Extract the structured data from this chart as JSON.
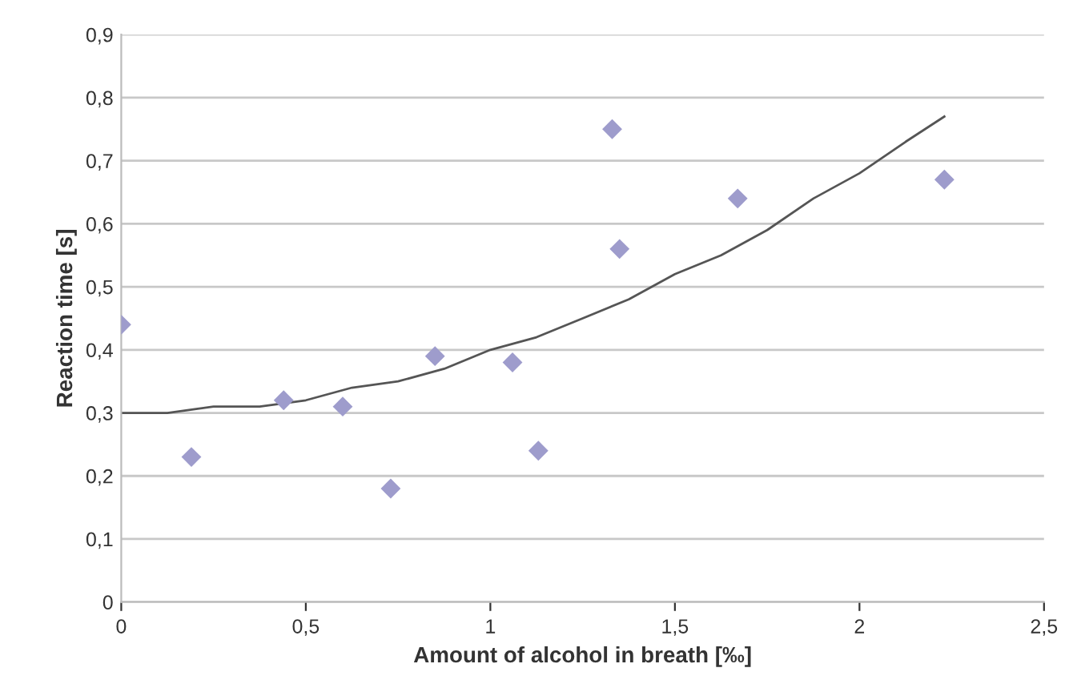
{
  "chart_data": {
    "type": "scatter",
    "xlabel": "Amount of alcohol in breath [‰]",
    "ylabel": "Reaction time [s]",
    "series": [
      {
        "color": "#9e9ccc",
        "marker": "diamond",
        "x": [
          0,
          0.19,
          0.44,
          0.6,
          0.73,
          0.85,
          1.06,
          1.13,
          1.33,
          1.35,
          1.67,
          2.23
        ],
        "values": [
          0.44,
          0.23,
          0.32,
          0.31,
          0.18,
          0.39,
          0.38,
          0.24,
          0.75,
          0.56,
          0.64,
          0.67
        ]
      },
      {
        "type": "line",
        "color": "#555555",
        "marker": "none",
        "line_style": "solid",
        "x": [
          0,
          0.125,
          0.25,
          0.375,
          0.5,
          0.625,
          0.75,
          0.875,
          1,
          1.125,
          1.25,
          1.375,
          1.5,
          1.625,
          1.75,
          1.875,
          2,
          2.125,
          2.23
        ],
        "values": [
          0.3,
          0.3,
          0.31,
          0.31,
          0.32,
          0.34,
          0.35,
          0.37,
          0.4,
          0.42,
          0.45,
          0.48,
          0.52,
          0.55,
          0.59,
          0.64,
          0.68,
          0.73,
          0.77
        ]
      }
    ],
    "xlim": [
      0,
      2.5
    ],
    "xticks": [
      0,
      {
        "value": 0.5,
        "label": "0,5"
      },
      1,
      {
        "value": 1.5,
        "label": "1,5"
      },
      2,
      {
        "value": 2.5,
        "label": "2,5"
      }
    ],
    "ylim": [
      0,
      0.9
    ],
    "yticks": [
      0,
      {
        "value": 0.1,
        "label": "0,1"
      },
      {
        "value": 0.2,
        "label": "0,2"
      },
      {
        "value": 0.3,
        "label": "0,3"
      },
      {
        "value": 0.4,
        "label": "0,4"
      },
      {
        "value": 0.5,
        "label": "0,5"
      },
      {
        "value": 0.6,
        "label": "0,6"
      },
      {
        "value": 0.7,
        "label": "0,7"
      },
      {
        "value": 0.8,
        "label": "0,8"
      },
      {
        "value": 0.9,
        "label": "0,9"
      }
    ],
    "grid": "y"
  }
}
